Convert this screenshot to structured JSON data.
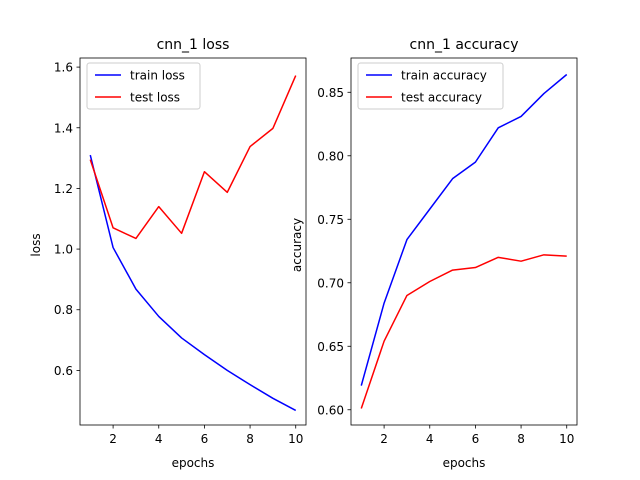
{
  "chart_data": [
    {
      "type": "line",
      "title": "cnn_1 loss",
      "xlabel": "epochs",
      "ylabel": "loss",
      "x": [
        1,
        2,
        3,
        4,
        5,
        6,
        7,
        8,
        9,
        10
      ],
      "xlim": [
        0.55,
        10.45
      ],
      "ylim": [
        0.42,
        1.63
      ],
      "xticks": [
        2,
        4,
        6,
        8,
        10
      ],
      "yticks": [
        0.6,
        0.8,
        1.0,
        1.2,
        1.4,
        1.6
      ],
      "ytick_decimals": 1,
      "legend": "upper-left",
      "grid": false,
      "series": [
        {
          "name": "train loss",
          "color": "#0000ff",
          "values": [
            1.31,
            1.005,
            0.868,
            0.778,
            0.707,
            0.652,
            0.6,
            0.553,
            0.508,
            0.468
          ]
        },
        {
          "name": "test loss",
          "color": "#ff0000",
          "values": [
            1.295,
            1.07,
            1.035,
            1.14,
            1.052,
            1.255,
            1.187,
            1.338,
            1.398,
            1.572
          ]
        }
      ]
    },
    {
      "type": "line",
      "title": "cnn_1 accuracy",
      "xlabel": "epochs",
      "ylabel": "accuracy",
      "x": [
        1,
        2,
        3,
        4,
        5,
        6,
        7,
        8,
        9,
        10
      ],
      "xlim": [
        0.55,
        10.45
      ],
      "ylim": [
        0.588,
        0.877
      ],
      "xticks": [
        2,
        4,
        6,
        8,
        10
      ],
      "yticks": [
        0.6,
        0.65,
        0.7,
        0.75,
        0.8,
        0.85
      ],
      "ytick_decimals": 2,
      "legend": "upper-left",
      "grid": false,
      "series": [
        {
          "name": "train accuracy",
          "color": "#0000ff",
          "values": [
            0.619,
            0.684,
            0.734,
            0.758,
            0.782,
            0.795,
            0.822,
            0.831,
            0.849,
            0.864
          ]
        },
        {
          "name": "test accuracy",
          "color": "#ff0000",
          "values": [
            0.601,
            0.654,
            0.69,
            0.701,
            0.71,
            0.712,
            0.72,
            0.717,
            0.722,
            0.721
          ]
        }
      ]
    }
  ]
}
